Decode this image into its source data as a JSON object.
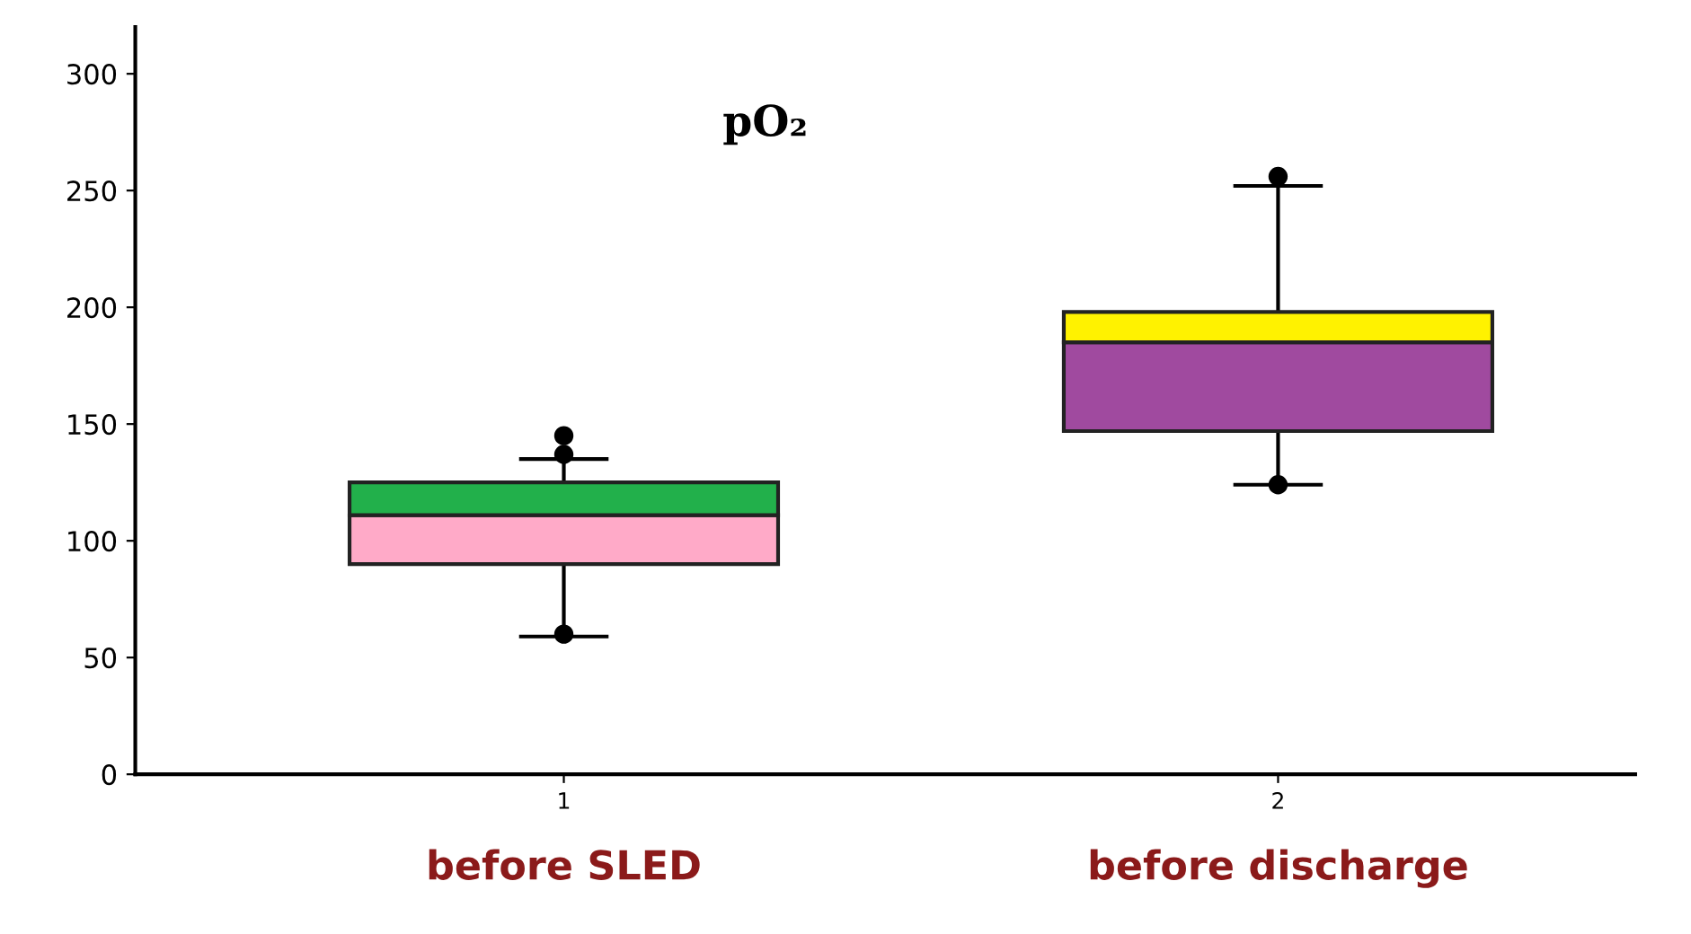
{
  "chart_data": {
    "type": "box",
    "title": "pO₂",
    "categories": [
      "1",
      "2"
    ],
    "boxes": [
      {
        "low": 59,
        "q1": 90,
        "median": 111,
        "q3": 125,
        "high": 135,
        "outliers": [
          145,
          137,
          60
        ]
      },
      {
        "low": 124,
        "q1": 147,
        "median": 185,
        "q3": 198,
        "high": 252,
        "outliers": [
          256,
          124
        ]
      }
    ],
    "colors": [
      [
        "#ffaac8",
        "#22b04b"
      ],
      [
        "#a04a9f",
        "#fff200"
      ]
    ],
    "ylim": [
      0,
      320
    ],
    "yticks": [
      0,
      50,
      100,
      150,
      200,
      250,
      300
    ],
    "grid": false,
    "marker": "circle",
    "annotations": [
      "before SLED",
      "before discharge"
    ]
  }
}
